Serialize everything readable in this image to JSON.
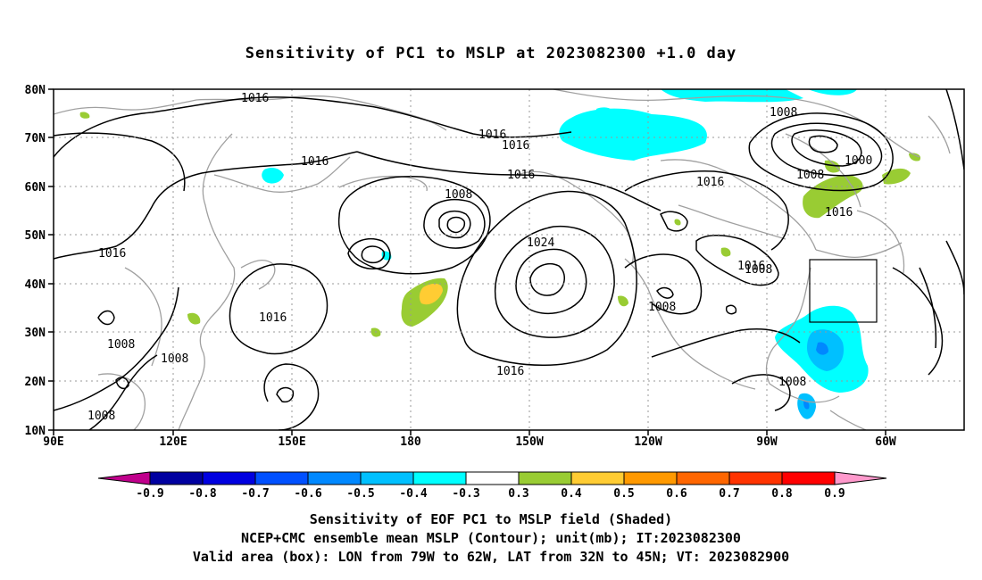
{
  "title": "Sensitivity of PC1 to MSLP at 2023082300 +1.0 day",
  "map": {
    "lon_labels": [
      "90E",
      "120E",
      "150E",
      "180",
      "150W",
      "120W",
      "90W",
      "60W"
    ],
    "lat_labels": [
      "80N",
      "70N",
      "60N",
      "50N",
      "40N",
      "30N",
      "20N",
      "10N"
    ],
    "contour_labels": [
      "1016",
      "1016",
      "1016",
      "1016",
      "1016",
      "1016",
      "1016",
      "1016",
      "1016",
      "1016",
      "1016",
      "1008",
      "1008",
      "1008",
      "1008",
      "1008",
      "1008",
      "1008",
      "1008",
      "1008",
      "1024",
      "1000"
    ],
    "valid_box": {
      "lon_from": "79W",
      "lon_to": "62W",
      "lat_from": "32N",
      "lat_to": "45N"
    }
  },
  "colorbar": {
    "labels": [
      "-0.9",
      "-0.8",
      "-0.7",
      "-0.6",
      "-0.5",
      "-0.4",
      "-0.3",
      "0.3",
      "0.4",
      "0.5",
      "0.6",
      "0.7",
      "0.8",
      "0.9"
    ],
    "colors": [
      "#c0008c",
      "#0000a0",
      "#0000e0",
      "#0050ff",
      "#0088ff",
      "#00c0ff",
      "#00ffff",
      "#ffffff",
      "#99cc33",
      "#ffcc33",
      "#ff9900",
      "#ff6600",
      "#ff3300",
      "#ff0000",
      "#ff99cc"
    ]
  },
  "captions": {
    "line1": "Sensitivity of EOF PC1 to MSLP field (Shaded)",
    "line2": "NCEP+CMC ensemble mean MSLP (Contour); unit(mb); IT:2023082300",
    "line3": "Valid area (box): LON from 79W to 62W, LAT from 32N to 45N; VT: 2023082900"
  }
}
